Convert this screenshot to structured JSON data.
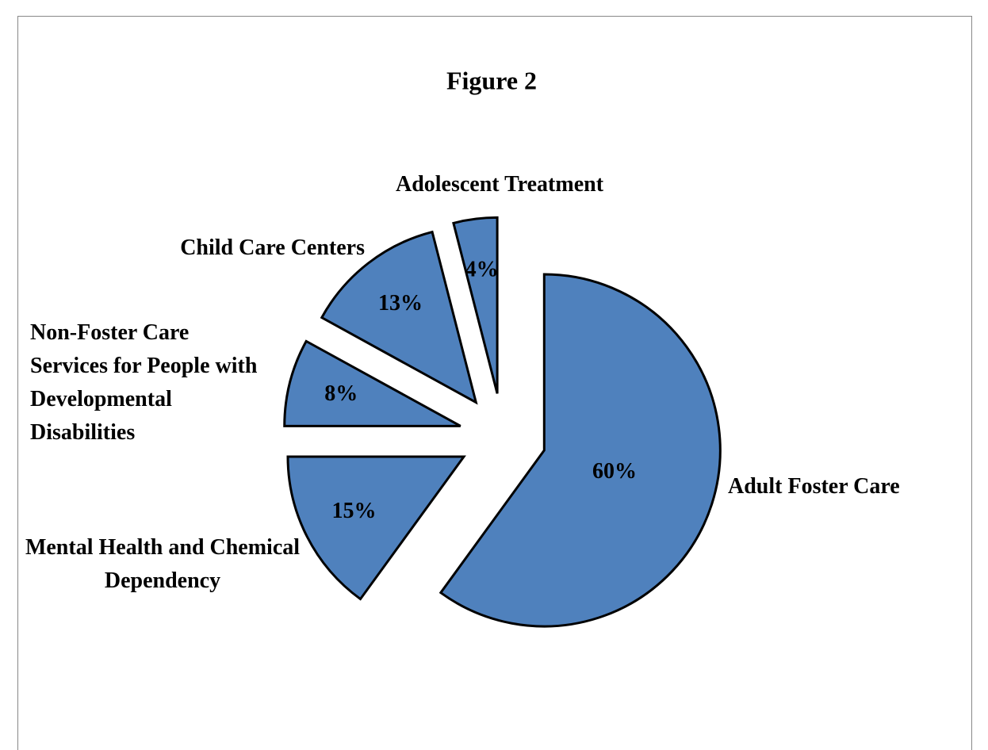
{
  "chart_data": {
    "type": "pie",
    "title": "Figure 2",
    "categories": [
      "Adult Foster Care",
      "Mental Health and Chemical Dependency",
      "Non-Foster Care Services for People with Developmental Disabilities",
      "Child Care Centers",
      "Adolescent Treatment"
    ],
    "values": [
      60,
      15,
      8,
      13,
      4
    ],
    "value_labels": [
      "60%",
      "15%",
      "8%",
      "13%",
      "4%"
    ],
    "color": "#4f81bd",
    "exploded": true
  }
}
